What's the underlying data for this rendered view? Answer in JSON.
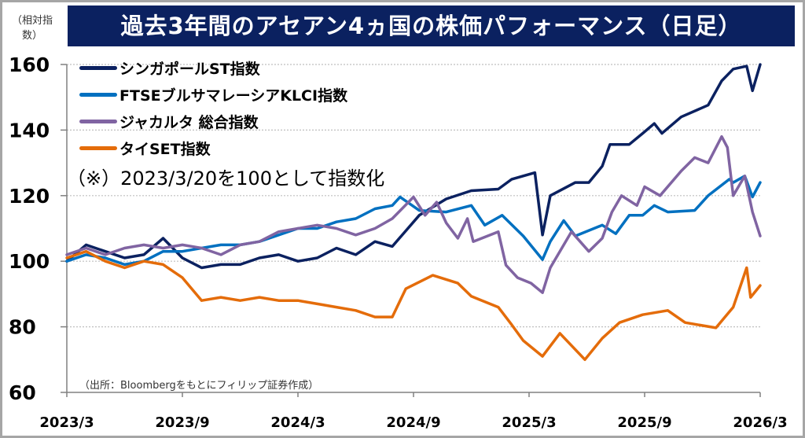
{
  "chart_data": {
    "type": "line",
    "title": "過去3年間のアセアン4ヵ国の株価パフォーマンス（日足）",
    "ylabel": "（相対指数）",
    "xlabel": "",
    "x_unit": "months since 2023/3",
    "xlim": [
      0,
      36
    ],
    "ylim": [
      60,
      160
    ],
    "yticks": [
      "160",
      "140",
      "120",
      "100",
      "80",
      "60"
    ],
    "ytick_values": [
      160,
      140,
      120,
      100,
      80,
      60
    ],
    "xticks": [
      "2023/3",
      "2023/9",
      "2024/3",
      "2024/9",
      "2025/3",
      "2025/9",
      "2026/3"
    ],
    "xtick_values": [
      0,
      6,
      12,
      18,
      24,
      30,
      36
    ],
    "grid": true,
    "legend_position": "top-left",
    "note": "（※）2023/3/20を100として指数化",
    "source": "（出所：Bloombergをもとにフィリップ証券作成）",
    "series": [
      {
        "name": "シンガポールST指数",
        "color": "#0b2160",
        "points": [
          [
            0,
            100
          ],
          [
            1,
            105
          ],
          [
            2,
            103
          ],
          [
            3,
            101
          ],
          [
            4,
            102
          ],
          [
            5,
            107
          ],
          [
            6,
            101
          ],
          [
            7,
            98
          ],
          [
            8,
            99
          ],
          [
            9,
            99
          ],
          [
            10,
            101
          ],
          [
            11,
            102
          ],
          [
            12,
            100
          ],
          [
            13,
            101
          ],
          [
            14,
            104
          ],
          [
            15,
            102
          ],
          [
            16,
            106
          ],
          [
            16.9,
            104.5
          ],
          [
            18.3,
            114
          ],
          [
            19.7,
            119
          ],
          [
            21,
            121.5
          ],
          [
            22.4,
            122
          ],
          [
            23.1,
            125
          ],
          [
            24.3,
            127
          ],
          [
            24.7,
            108
          ],
          [
            25.1,
            120
          ],
          [
            26.4,
            124
          ],
          [
            27.1,
            124
          ],
          [
            27.8,
            129
          ],
          [
            28.2,
            135.6
          ],
          [
            29.2,
            135.6
          ],
          [
            29.9,
            139
          ],
          [
            30.5,
            142
          ],
          [
            30.9,
            139
          ],
          [
            31.9,
            144
          ],
          [
            33.3,
            147.6
          ],
          [
            34,
            155
          ],
          [
            34.6,
            158.6
          ],
          [
            35.3,
            159.5
          ],
          [
            35.6,
            152
          ],
          [
            36,
            160
          ]
        ]
      },
      {
        "name": "FTSEブルサマレーシアKLCI指数",
        "color": "#0070c0",
        "points": [
          [
            0,
            100
          ],
          [
            1,
            102
          ],
          [
            2,
            101
          ],
          [
            3,
            99
          ],
          [
            4,
            100
          ],
          [
            5,
            103
          ],
          [
            6,
            103
          ],
          [
            7,
            104
          ],
          [
            8,
            105
          ],
          [
            9,
            105
          ],
          [
            10,
            106
          ],
          [
            11,
            108
          ],
          [
            12,
            110
          ],
          [
            13,
            110
          ],
          [
            14,
            112
          ],
          [
            15,
            113
          ],
          [
            16,
            116
          ],
          [
            16.9,
            117
          ],
          [
            17.3,
            119.6
          ],
          [
            18.3,
            115.5
          ],
          [
            19.7,
            115
          ],
          [
            21,
            117
          ],
          [
            21.7,
            111
          ],
          [
            22.6,
            114
          ],
          [
            23.7,
            107.7
          ],
          [
            24.7,
            100.5
          ],
          [
            25.1,
            106
          ],
          [
            25.8,
            112.4
          ],
          [
            26.4,
            107.7
          ],
          [
            27.8,
            111
          ],
          [
            28.5,
            108.4
          ],
          [
            29.2,
            114
          ],
          [
            29.9,
            114
          ],
          [
            30.5,
            117
          ],
          [
            31.2,
            115
          ],
          [
            32.6,
            115.5
          ],
          [
            33.3,
            120
          ],
          [
            34.4,
            125
          ],
          [
            34.6,
            124
          ],
          [
            35.2,
            126
          ],
          [
            35.6,
            119.6
          ],
          [
            36,
            124
          ]
        ]
      },
      {
        "name": "ジャカルタ 総合指数",
        "color": "#8064a2",
        "points": [
          [
            0,
            102
          ],
          [
            1,
            104
          ],
          [
            2,
            102
          ],
          [
            3,
            104
          ],
          [
            4,
            105
          ],
          [
            5,
            104
          ],
          [
            6,
            105
          ],
          [
            7,
            104
          ],
          [
            8,
            102
          ],
          [
            9,
            105
          ],
          [
            10,
            106
          ],
          [
            11,
            109
          ],
          [
            12,
            110
          ],
          [
            13,
            111
          ],
          [
            14,
            110
          ],
          [
            15,
            108
          ],
          [
            16,
            110
          ],
          [
            16.9,
            113
          ],
          [
            18,
            119.6
          ],
          [
            18.6,
            114
          ],
          [
            19.2,
            118
          ],
          [
            19.7,
            111.7
          ],
          [
            20.3,
            107
          ],
          [
            20.8,
            113
          ],
          [
            21.1,
            106
          ],
          [
            22.4,
            109
          ],
          [
            22.8,
            98.8
          ],
          [
            23.4,
            95
          ],
          [
            24.1,
            93.3
          ],
          [
            24.7,
            90.4
          ],
          [
            25.1,
            98
          ],
          [
            26.2,
            109
          ],
          [
            27.1,
            103
          ],
          [
            27.8,
            107
          ],
          [
            28.3,
            115
          ],
          [
            28.8,
            120
          ],
          [
            29.6,
            117
          ],
          [
            30,
            122.7
          ],
          [
            30.8,
            120
          ],
          [
            31.9,
            127.5
          ],
          [
            32.6,
            131.6
          ],
          [
            33.3,
            130
          ],
          [
            34,
            138
          ],
          [
            34.3,
            134.7
          ],
          [
            34.6,
            120
          ],
          [
            35.2,
            126
          ],
          [
            35.6,
            115
          ],
          [
            36,
            107.7
          ]
        ]
      },
      {
        "name": "タイSET指数",
        "color": "#e46c0a",
        "points": [
          [
            0,
            101
          ],
          [
            1,
            103
          ],
          [
            2,
            100
          ],
          [
            3,
            98
          ],
          [
            4,
            100
          ],
          [
            5,
            99
          ],
          [
            6,
            95
          ],
          [
            7,
            88
          ],
          [
            8,
            89
          ],
          [
            9,
            88
          ],
          [
            10,
            89
          ],
          [
            11,
            88
          ],
          [
            12,
            88
          ],
          [
            13,
            87
          ],
          [
            14,
            86
          ],
          [
            15,
            85
          ],
          [
            16,
            83
          ],
          [
            16.9,
            83
          ],
          [
            17.6,
            91.6
          ],
          [
            19,
            95.7
          ],
          [
            20.3,
            93.3
          ],
          [
            21,
            89.3
          ],
          [
            22.4,
            86
          ],
          [
            23.1,
            80.6
          ],
          [
            23.7,
            75.8
          ],
          [
            24.7,
            71
          ],
          [
            25.6,
            78
          ],
          [
            26.9,
            70
          ],
          [
            27.8,
            76.5
          ],
          [
            28.7,
            81.3
          ],
          [
            29.9,
            83.7
          ],
          [
            31.2,
            85
          ],
          [
            32.1,
            81.3
          ],
          [
            33.7,
            79.7
          ],
          [
            34.6,
            86
          ],
          [
            35.3,
            98
          ],
          [
            35.5,
            89
          ],
          [
            36,
            92.6
          ]
        ]
      }
    ]
  }
}
